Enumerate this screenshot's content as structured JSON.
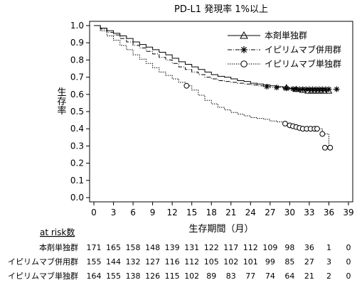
{
  "chart_data": {
    "type": "line",
    "subtype": "kaplan-meier",
    "title": "PD-L1 発現率 1%以上",
    "xlabel": "生存期間（月）",
    "ylabel": "生存率",
    "xlim": [
      0,
      39
    ],
    "ylim": [
      0.0,
      1.0
    ],
    "xticks": [
      0,
      3,
      6,
      9,
      12,
      15,
      18,
      21,
      24,
      27,
      30,
      33,
      36,
      39
    ],
    "yticks": [
      0.0,
      0.1,
      0.2,
      0.3,
      0.4,
      0.5,
      0.6,
      0.7,
      0.8,
      0.9,
      1.0
    ],
    "grid": false,
    "legend_position": "top-right",
    "series": [
      {
        "name": "本剤単独群",
        "line_style": "solid",
        "marker": "triangle",
        "points": [
          [
            0,
            1.0
          ],
          [
            1,
            0.985
          ],
          [
            2,
            0.97
          ],
          [
            3,
            0.955
          ],
          [
            4,
            0.94
          ],
          [
            5,
            0.925
          ],
          [
            6,
            0.905
          ],
          [
            7,
            0.89
          ],
          [
            8,
            0.875
          ],
          [
            9,
            0.86
          ],
          [
            10,
            0.845
          ],
          [
            11,
            0.83
          ],
          [
            12,
            0.81
          ],
          [
            13,
            0.79
          ],
          [
            14,
            0.775
          ],
          [
            15,
            0.76
          ],
          [
            16,
            0.745
          ],
          [
            17,
            0.73
          ],
          [
            18,
            0.715
          ],
          [
            19,
            0.705
          ],
          [
            20,
            0.7
          ],
          [
            21,
            0.69
          ],
          [
            22,
            0.68
          ],
          [
            23,
            0.675
          ],
          [
            24,
            0.665
          ],
          [
            25,
            0.66
          ],
          [
            26,
            0.655
          ],
          [
            27,
            0.65
          ],
          [
            28,
            0.645
          ],
          [
            29,
            0.64
          ],
          [
            30,
            0.635
          ],
          [
            31,
            0.63
          ],
          [
            32,
            0.625
          ],
          [
            33,
            0.62
          ],
          [
            34,
            0.62
          ],
          [
            35,
            0.62
          ],
          [
            36,
            0.62
          ]
        ],
        "censor_marks": [
          [
            29.5,
            0.64
          ],
          [
            31,
            0.63
          ],
          [
            32,
            0.625
          ],
          [
            32.8,
            0.62
          ],
          [
            33.3,
            0.62
          ],
          [
            33.8,
            0.62
          ],
          [
            34.3,
            0.62
          ],
          [
            34.8,
            0.62
          ],
          [
            35.3,
            0.62
          ],
          [
            36,
            0.62
          ]
        ]
      },
      {
        "name": "イピリムマブ併用群",
        "line_style": "dashdot",
        "marker": "asterisk",
        "points": [
          [
            0,
            1.0
          ],
          [
            1,
            0.98
          ],
          [
            2,
            0.96
          ],
          [
            3,
            0.945
          ],
          [
            4,
            0.925
          ],
          [
            5,
            0.905
          ],
          [
            6,
            0.885
          ],
          [
            7,
            0.87
          ],
          [
            8,
            0.85
          ],
          [
            9,
            0.835
          ],
          [
            10,
            0.815
          ],
          [
            11,
            0.8
          ],
          [
            12,
            0.78
          ],
          [
            13,
            0.76
          ],
          [
            14,
            0.745
          ],
          [
            15,
            0.73
          ],
          [
            16,
            0.715
          ],
          [
            17,
            0.7
          ],
          [
            18,
            0.69
          ],
          [
            19,
            0.68
          ],
          [
            20,
            0.675
          ],
          [
            21,
            0.67
          ],
          [
            22,
            0.665
          ],
          [
            23,
            0.66
          ],
          [
            24,
            0.655
          ],
          [
            25,
            0.65
          ],
          [
            26,
            0.645
          ],
          [
            27,
            0.64
          ],
          [
            28,
            0.64
          ],
          [
            29,
            0.635
          ],
          [
            30,
            0.635
          ],
          [
            31,
            0.63
          ],
          [
            32,
            0.63
          ],
          [
            33,
            0.63
          ],
          [
            34,
            0.63
          ],
          [
            35,
            0.63
          ],
          [
            36,
            0.63
          ],
          [
            37,
            0.63
          ]
        ],
        "censor_marks": [
          [
            26.5,
            0.645
          ],
          [
            28,
            0.64
          ],
          [
            29.5,
            0.635
          ],
          [
            30.5,
            0.632
          ],
          [
            31,
            0.63
          ],
          [
            31.5,
            0.63
          ],
          [
            32,
            0.63
          ],
          [
            32.5,
            0.63
          ],
          [
            33,
            0.63
          ],
          [
            33.5,
            0.63
          ],
          [
            34,
            0.63
          ],
          [
            34.5,
            0.63
          ],
          [
            35,
            0.63
          ],
          [
            35.5,
            0.63
          ],
          [
            36,
            0.63
          ],
          [
            37.2,
            0.63
          ]
        ]
      },
      {
        "name": "イピリムマブ単独群",
        "line_style": "dotted",
        "marker": "circle",
        "points": [
          [
            0,
            1.0
          ],
          [
            1,
            0.97
          ],
          [
            2,
            0.94
          ],
          [
            3,
            0.915
          ],
          [
            4,
            0.885
          ],
          [
            5,
            0.86
          ],
          [
            6,
            0.83
          ],
          [
            7,
            0.805
          ],
          [
            8,
            0.78
          ],
          [
            9,
            0.755
          ],
          [
            10,
            0.73
          ],
          [
            11,
            0.71
          ],
          [
            12,
            0.69
          ],
          [
            13,
            0.67
          ],
          [
            14,
            0.65
          ],
          [
            15,
            0.625
          ],
          [
            16,
            0.595
          ],
          [
            17,
            0.565
          ],
          [
            18,
            0.545
          ],
          [
            19,
            0.525
          ],
          [
            20,
            0.51
          ],
          [
            21,
            0.495
          ],
          [
            22,
            0.485
          ],
          [
            23,
            0.475
          ],
          [
            24,
            0.465
          ],
          [
            25,
            0.46
          ],
          [
            26,
            0.455
          ],
          [
            27,
            0.445
          ],
          [
            28,
            0.44
          ],
          [
            29,
            0.43
          ],
          [
            30,
            0.42
          ],
          [
            31,
            0.41
          ],
          [
            32,
            0.4
          ],
          [
            33,
            0.4
          ],
          [
            34,
            0.4
          ],
          [
            35,
            0.37
          ],
          [
            36,
            0.29
          ]
        ],
        "censor_marks": [
          [
            14.2,
            0.65
          ],
          [
            29.3,
            0.43
          ],
          [
            30,
            0.42
          ],
          [
            30.5,
            0.415
          ],
          [
            31,
            0.41
          ],
          [
            31.5,
            0.405
          ],
          [
            32,
            0.4
          ],
          [
            32.6,
            0.4
          ],
          [
            33.2,
            0.4
          ],
          [
            33.8,
            0.4
          ],
          [
            34.2,
            0.4
          ],
          [
            35,
            0.37
          ],
          [
            35.4,
            0.29
          ],
          [
            36.2,
            0.29
          ]
        ]
      }
    ],
    "at_risk": {
      "title": "at risk数",
      "times": [
        0,
        3,
        6,
        9,
        12,
        15,
        18,
        21,
        24,
        27,
        30,
        33,
        36,
        39
      ],
      "rows": [
        {
          "label": "本剤単独群",
          "values": [
            "171",
            "165",
            "158",
            "148",
            "139",
            "131",
            "122",
            "117",
            "112",
            "109",
            "98",
            "36",
            "1",
            "0"
          ]
        },
        {
          "label": "イピリムマブ併用群",
          "values": [
            "155",
            "144",
            "132",
            "127",
            "116",
            "112",
            "105",
            "102",
            "101",
            "99",
            "85",
            "27",
            "3",
            "0"
          ]
        },
        {
          "label": "イピリムマブ単独群",
          "values": [
            "164",
            "155",
            "138",
            "126",
            "115",
            "102",
            "89",
            "83",
            "77",
            "74",
            "64",
            "21",
            "2",
            "0"
          ]
        }
      ]
    }
  }
}
